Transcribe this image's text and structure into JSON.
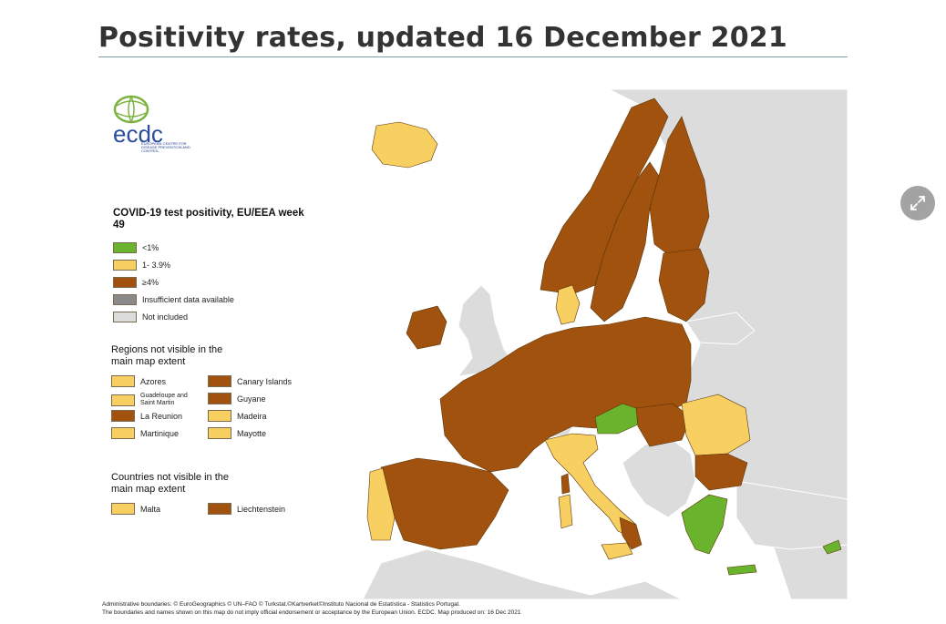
{
  "page": {
    "title": "Positivity rates, updated 16 December 2021"
  },
  "colors": {
    "low": "#6ab42d",
    "mid": "#f8d061",
    "high": "#a0520e",
    "insufficient": "#8a8a8a",
    "not_included": "#dcdcdc",
    "sea": "#ffffff",
    "border": "#5a3508"
  },
  "logo": {
    "text": "ecdc",
    "subtitle": "EUROPEAN CENTRE FOR DISEASE PREVENTION AND CONTROL"
  },
  "legend": {
    "title": "COVID-19 test positivity, EU/EEA week 49",
    "items": [
      {
        "label": "<1%",
        "color_key": "low"
      },
      {
        "label": "1- 3.9%",
        "color_key": "mid"
      },
      {
        "label": "≥4%",
        "color_key": "high"
      },
      {
        "label": "Insufficient data available",
        "color_key": "insufficient"
      },
      {
        "label": "Not included",
        "color_key": "not_included"
      }
    ]
  },
  "regions_section": {
    "title": "Regions not visible in the main map extent",
    "items": [
      {
        "label": "Azores",
        "color_key": "mid"
      },
      {
        "label": "Canary Islands",
        "color_key": "high"
      },
      {
        "label": "Guadeloupe and Saint Martin",
        "color_key": "mid"
      },
      {
        "label": "Guyane",
        "color_key": "high"
      },
      {
        "label": "La Reunion",
        "color_key": "high"
      },
      {
        "label": "Madeira",
        "color_key": "mid"
      },
      {
        "label": "Martinique",
        "color_key": "mid"
      },
      {
        "label": "Mayotte",
        "color_key": "mid"
      }
    ]
  },
  "countries_section": {
    "title": "Countries not visible in the main map extent",
    "items": [
      {
        "label": "Malta",
        "color_key": "mid"
      },
      {
        "label": "Liechtenstein",
        "color_key": "high"
      }
    ]
  },
  "footer": {
    "line1": "Administrative boundaries: © EuroGeographics © UN–FAO © Turkstat.©Kartverket©Instituto Nacional de Estatística - Statistics Portugal.",
    "line2": "The boundaries and names shown on this map do not imply official endorsement or acceptance by the European Union. ECDC. Map produced on: 16 Dec 2021"
  }
}
